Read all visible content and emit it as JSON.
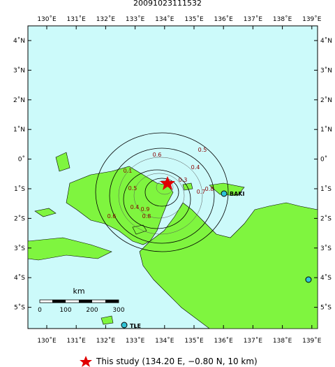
{
  "title": "20091023111532",
  "lon_ticks": [
    {
      "value": 130,
      "label": "130˚E"
    },
    {
      "value": 131,
      "label": "131˚E"
    },
    {
      "value": 132,
      "label": "132˚E"
    },
    {
      "value": 133,
      "label": "133˚E"
    },
    {
      "value": 134,
      "label": "134˚E"
    },
    {
      "value": 135,
      "label": "135˚E"
    },
    {
      "value": 136,
      "label": "136˚E"
    },
    {
      "value": 137,
      "label": "137˚E"
    },
    {
      "value": 138,
      "label": "138˚E"
    },
    {
      "value": 139,
      "label": "139˚E"
    }
  ],
  "lat_ticks": [
    {
      "value": 4,
      "label": "4˚N"
    },
    {
      "value": 3,
      "label": "3˚N"
    },
    {
      "value": 2,
      "label": "2˚N"
    },
    {
      "value": 1,
      "label": "1˚N"
    },
    {
      "value": 0,
      "label": "0˚"
    },
    {
      "value": -1,
      "label": "1˚S"
    },
    {
      "value": -2,
      "label": "2˚S"
    },
    {
      "value": -3,
      "label": "3˚S"
    },
    {
      "value": -4,
      "label": "4˚S"
    },
    {
      "value": -5,
      "label": "5˚S"
    }
  ],
  "contour_labels": [
    "0.1",
    "0.5",
    "0.4",
    "0.6",
    "0.5",
    "0.4",
    "0.3",
    "0.9",
    "0.8",
    "0.6",
    "0.7",
    "0.8"
  ],
  "stations": [
    "BAKI",
    "TLE"
  ],
  "scale": {
    "unit": "km",
    "labels": [
      "0",
      "100",
      "200",
      "300"
    ]
  },
  "legend": "This study (134.20 E, −0.80 N, 10 km)"
}
